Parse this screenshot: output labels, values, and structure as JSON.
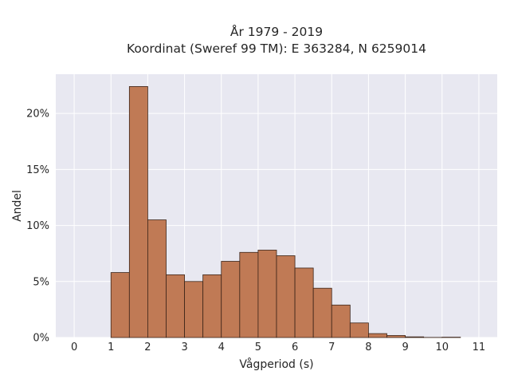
{
  "chart_data": {
    "type": "bar",
    "title_line1": "År 1979 - 2019",
    "title_line2": "Koordinat (Sweref 99 TM): E 363284, N 6259014",
    "xlabel": "Vågperiod (s)",
    "ylabel": "Andel",
    "bin_width": 0.5,
    "bins": [
      {
        "x0": 1.0,
        "value": 5.8
      },
      {
        "x0": 1.5,
        "value": 22.4
      },
      {
        "x0": 2.0,
        "value": 10.5
      },
      {
        "x0": 2.5,
        "value": 5.6
      },
      {
        "x0": 3.0,
        "value": 5.0
      },
      {
        "x0": 3.5,
        "value": 5.6
      },
      {
        "x0": 4.0,
        "value": 6.8
      },
      {
        "x0": 4.5,
        "value": 7.6
      },
      {
        "x0": 5.0,
        "value": 7.8
      },
      {
        "x0": 5.5,
        "value": 7.3
      },
      {
        "x0": 6.0,
        "value": 6.2
      },
      {
        "x0": 6.5,
        "value": 4.4
      },
      {
        "x0": 7.0,
        "value": 2.9
      },
      {
        "x0": 7.5,
        "value": 1.3
      },
      {
        "x0": 8.0,
        "value": 0.35
      },
      {
        "x0": 8.5,
        "value": 0.18
      },
      {
        "x0": 9.0,
        "value": 0.06
      },
      {
        "x0": 9.5,
        "value": 0.01
      },
      {
        "x0": 10.0,
        "value": 0.03
      },
      {
        "x0": 10.5,
        "value": 0.0
      }
    ],
    "xlim": [
      -0.5,
      11.5
    ],
    "ylim": [
      0,
      23.5
    ],
    "xticks": [
      0,
      1,
      2,
      3,
      4,
      5,
      6,
      7,
      8,
      9,
      10,
      11
    ],
    "xtick_labels": [
      "0",
      "1",
      "2",
      "3",
      "4",
      "5",
      "6",
      "7",
      "8",
      "9",
      "10",
      "11"
    ],
    "yticks": [
      0,
      5,
      10,
      15,
      20
    ],
    "ytick_labels": [
      "0%",
      "5%",
      "10%",
      "15%",
      "20%"
    ],
    "grid": true,
    "colors": {
      "bar_fill": "#c07a55",
      "bar_edge": "#3b2418",
      "plot_background": "#e8e8f1",
      "grid": "#ffffff"
    }
  }
}
